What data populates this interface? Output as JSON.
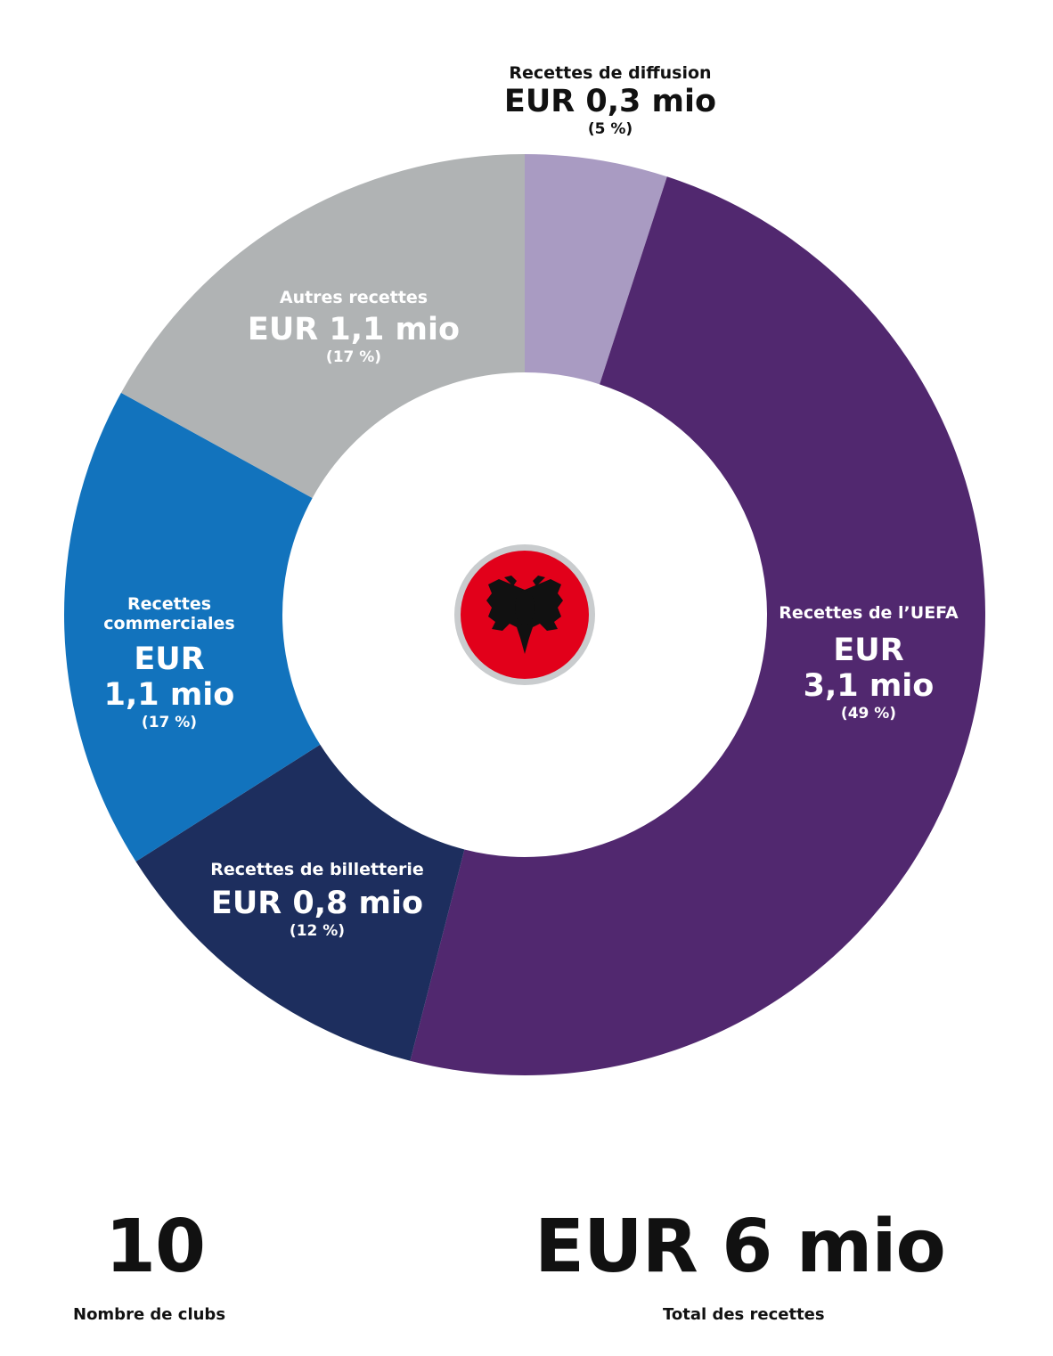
{
  "chart_data": {
    "type": "pie",
    "style": "donut",
    "unit": "EUR mio",
    "slices": [
      {
        "name": "Recettes de diffusion",
        "value": 0.3,
        "value_label": "EUR 0,3 mio",
        "percent": 5,
        "percent_label": "(5 %)",
        "color": "#a99bc2"
      },
      {
        "name": "Recettes de l’UEFA",
        "value": 3.1,
        "value_label": "EUR 3,1 mio",
        "percent": 49,
        "percent_label": "(49 %)",
        "color": "#51286f"
      },
      {
        "name": "Recettes de billetterie",
        "value": 0.8,
        "value_label": "EUR 0,8 mio",
        "percent": 12,
        "percent_label": "(12 %)",
        "color": "#1d2e5e"
      },
      {
        "name": "Recettes commerciales",
        "value": 1.1,
        "value_label": "EUR 1,1 mio",
        "percent": 17,
        "percent_label": "(17 %)",
        "color": "#1273bd"
      },
      {
        "name": "Autres recettes",
        "value": 1.1,
        "value_label": "EUR 1,1 mio",
        "percent": 17,
        "percent_label": "(17 %)",
        "color": "#b0b3b4"
      }
    ]
  },
  "center_emblem": {
    "icon": "albania-flag-eagle-icon",
    "color": "#e2001a",
    "ring_color": "#c9ccce"
  },
  "stats": {
    "clubs_value": "10",
    "clubs_label": "Nombre de clubs",
    "total_value": "EUR 6 mio",
    "total_label": "Total des recettes"
  },
  "labels": {
    "diffusion": {
      "name": "Recettes de diffusion",
      "value": "EUR 0,3 mio",
      "pct": "(5 %)"
    },
    "uefa": {
      "name": "Recettes de l’UEFA",
      "value1": "EUR",
      "value2": "3,1 mio",
      "pct": "(49 %)"
    },
    "billetterie": {
      "name": "Recettes de billetterie",
      "value": "EUR 0,8 mio",
      "pct": "(12 %)"
    },
    "commerciales": {
      "name1": "Recettes",
      "name2": "commerciales",
      "value1": "EUR",
      "value2": "1,1 mio",
      "pct": "(17 %)"
    },
    "autres": {
      "name": "Autres recettes",
      "value": "EUR 1,1 mio",
      "pct": "(17 %)"
    }
  }
}
